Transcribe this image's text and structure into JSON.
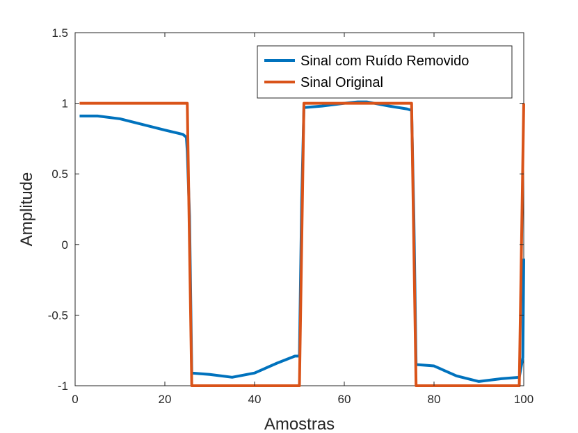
{
  "chart_data": {
    "type": "line",
    "xlabel": "Amostras",
    "ylabel": "Amplitude",
    "xlim": [
      0,
      100
    ],
    "ylim": [
      -1,
      1.5
    ],
    "xticks": [
      0,
      20,
      40,
      60,
      80,
      100
    ],
    "yticks": [
      -1,
      -0.5,
      0,
      0.5,
      1,
      1.5
    ],
    "xtick_labels": [
      "0",
      "20",
      "40",
      "60",
      "80",
      "100"
    ],
    "ytick_labels": [
      "-1",
      "-0.5",
      "0",
      "0.5",
      "1",
      "1.5"
    ],
    "grid": false,
    "legend_position": "top-right",
    "series": [
      {
        "name": "Sinal com Ruído Removido",
        "color": "#0072BD",
        "x": [
          1,
          5,
          10,
          15,
          20,
          24,
          24.8,
          25,
          25.5,
          26,
          30,
          35,
          40,
          45,
          49,
          50,
          50.5,
          51,
          55,
          60,
          63,
          65,
          70,
          74,
          75,
          75.5,
          76,
          80,
          85,
          90,
          95,
          99,
          99.8,
          100
        ],
        "values": [
          0.91,
          0.91,
          0.89,
          0.85,
          0.81,
          0.78,
          0.76,
          0.66,
          0.2,
          -0.91,
          -0.92,
          -0.94,
          -0.91,
          -0.84,
          -0.79,
          -0.79,
          0.3,
          0.97,
          0.98,
          1.0,
          1.01,
          1.01,
          0.98,
          0.96,
          0.95,
          0.2,
          -0.85,
          -0.86,
          -0.93,
          -0.97,
          -0.95,
          -0.94,
          -0.8,
          -0.1
        ]
      },
      {
        "name": "Sinal Original",
        "color": "#D95319",
        "x": [
          1,
          25,
          26,
          50,
          51,
          75,
          76,
          99,
          100
        ],
        "values": [
          1,
          1,
          -1,
          -1,
          1,
          1,
          -1,
          -1,
          1
        ]
      }
    ]
  }
}
